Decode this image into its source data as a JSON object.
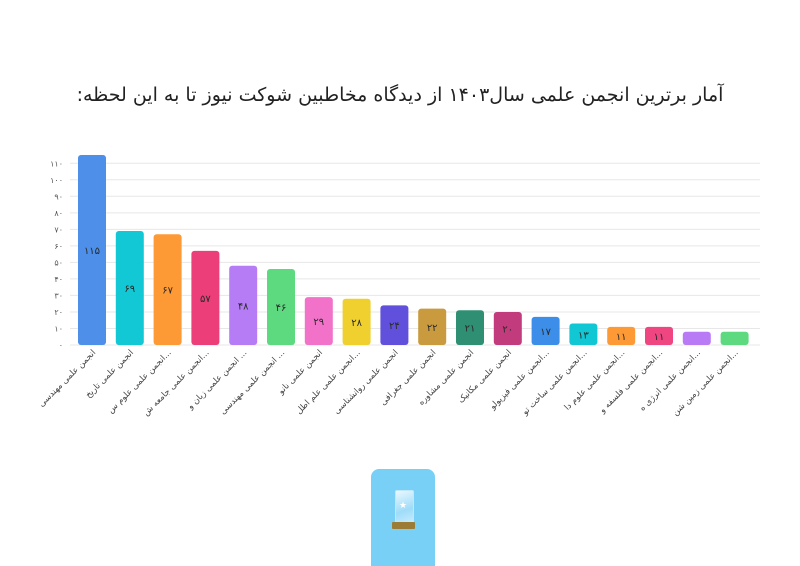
{
  "title": "آمار برترین انجمن علمی سال۱۴۰۳ از دیدگاه مخاطبین شوکت نیوز تا به این لحظه:",
  "chart_data": {
    "type": "bar",
    "title": "آمار برترین انجمن علمی سال۱۴۰۳ از دیدگاه مخاطبین شوکت نیوز تا به این لحظه:",
    "xlabel": "",
    "ylabel": "",
    "ylim": [
      0,
      115
    ],
    "yticks": [
      "۰",
      "۱۰",
      "۲۰",
      "۳۰",
      "۴۰",
      "۵۰",
      "۶۰",
      "۷۰",
      "۸۰",
      "۹۰",
      "۱۰۰",
      "۱۱۰"
    ],
    "grid": true,
    "categories": [
      "انجمن علمی مهندسی",
      "انجمن علمی تاریخ",
      "انجمن علمی علوم س...",
      "انجمن علمی جامعه ش...",
      "انجمن علمی زبان و ...",
      "انجمن علمی مهندسی ...",
      "انجمن علمی نانو",
      "انجمن علمی علم اطل...",
      "انجمن علمی روانشناسی",
      "انجمن علمی جغرافی",
      "انجمن علمی مشاوره",
      "انجمن علمی مکانیک",
      "انجمن علمی فیزیولو...",
      "انجمن علمی ساخت تو...",
      "انجمن علمی علوم دا...",
      "انجمن علمی فلسفه و...",
      "انجمن علمی انرژی ه...",
      "انجمن علمی زمین شن..."
    ],
    "values": [
      115,
      69,
      67,
      57,
      48,
      46,
      29,
      28,
      24,
      22,
      21,
      20,
      17,
      13,
      11,
      11,
      8,
      8
    ],
    "value_labels": [
      "۱۱۵",
      "۶۹",
      "۶۷",
      "۵۷",
      "۴۸",
      "۴۶",
      "۲۹",
      "۲۸",
      "۲۴",
      "۲۲",
      "۲۱",
      "۲۰",
      "۱۷",
      "۱۳",
      "۱۱",
      "۱۱",
      "",
      ""
    ],
    "colors": [
      "#4e8fe9",
      "#12c8d4",
      "#fe9a35",
      "#ec3e79",
      "#b57cf6",
      "#5dd97f",
      "#f271c9",
      "#efd02f",
      "#6050dc",
      "#c99a3e",
      "#2f8f73",
      "#c23b7c",
      "#3c8ee8",
      "#10c7d3",
      "#fe9a35",
      "#ef4580",
      "#b87bf5",
      "#5dd97f"
    ]
  }
}
